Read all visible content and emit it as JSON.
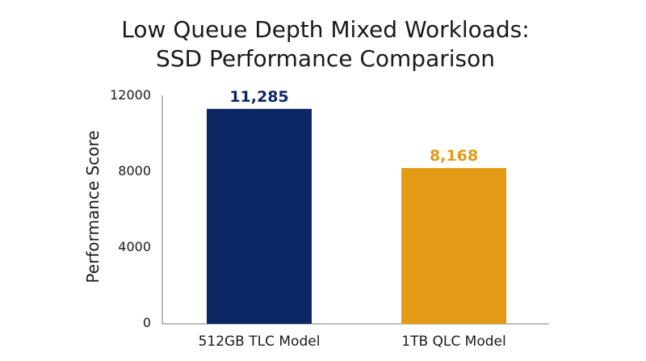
{
  "chart_data": {
    "type": "bar",
    "title_lines": [
      "Low Queue Depth Mixed Workloads:",
      "SSD Performance Comparison"
    ],
    "xlabel": "",
    "ylabel": "Performance Score",
    "categories": [
      "512GB TLC Model",
      "1TB QLC Model"
    ],
    "values": [
      11285,
      8168
    ],
    "data_labels": [
      "11,285",
      "8,168"
    ],
    "colors": [
      "#0c2764",
      "#e39a14"
    ],
    "ylim": [
      0,
      12000
    ],
    "yticks": [
      0,
      4000,
      8000,
      12000
    ],
    "ytick_labels": [
      "0",
      "4000",
      "8000",
      "12000"
    ],
    "grid": false,
    "legend": "none"
  }
}
